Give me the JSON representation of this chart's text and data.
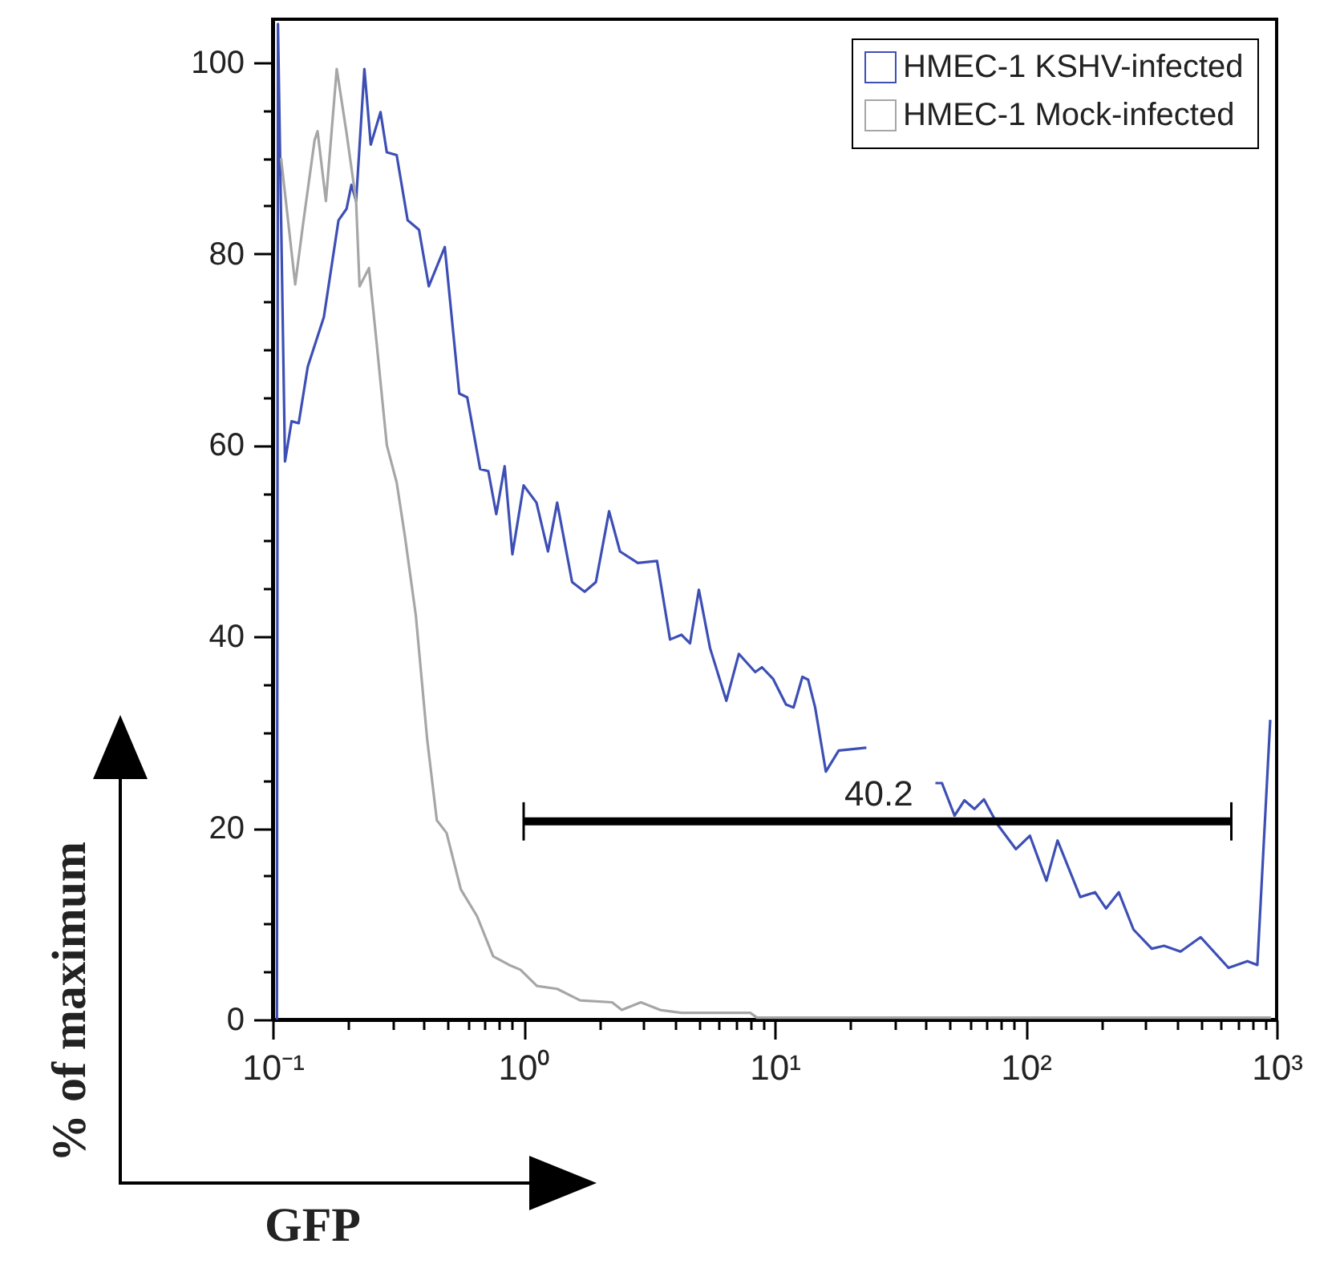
{
  "chart_data": {
    "type": "line",
    "xlabel": "GFP",
    "ylabel": "% of maximum",
    "log": "x",
    "xlim": [
      0.1,
      1000
    ],
    "ylim": [
      0,
      104.5
    ],
    "xticks": [
      {
        "value": 0.1,
        "label": "10⁻¹"
      },
      {
        "value": 0.2,
        "label": null
      },
      {
        "value": 0.3,
        "label": null
      },
      {
        "value": 0.4,
        "label": null
      },
      {
        "value": 0.5,
        "label": null
      },
      {
        "value": 0.6,
        "label": null
      },
      {
        "value": 0.7,
        "label": null
      },
      {
        "value": 0.8,
        "label": null
      },
      {
        "value": 0.9,
        "label": null
      },
      {
        "value": 1,
        "label": "10⁰"
      },
      {
        "value": 2,
        "label": null
      },
      {
        "value": 3,
        "label": null
      },
      {
        "value": 4,
        "label": null
      },
      {
        "value": 5,
        "label": null
      },
      {
        "value": 6,
        "label": null
      },
      {
        "value": 7,
        "label": null
      },
      {
        "value": 8,
        "label": null
      },
      {
        "value": 9,
        "label": null
      },
      {
        "value": 10,
        "label": "10¹"
      },
      {
        "value": 20,
        "label": null
      },
      {
        "value": 30,
        "label": null
      },
      {
        "value": 40,
        "label": null
      },
      {
        "value": 50,
        "label": null
      },
      {
        "value": 60,
        "label": null
      },
      {
        "value": 70,
        "label": null
      },
      {
        "value": 80,
        "label": null
      },
      {
        "value": 90,
        "label": null
      },
      {
        "value": 100,
        "label": "10²"
      },
      {
        "value": 200,
        "label": null
      },
      {
        "value": 300,
        "label": null
      },
      {
        "value": 400,
        "label": null
      },
      {
        "value": 500,
        "label": null
      },
      {
        "value": 600,
        "label": null
      },
      {
        "value": 700,
        "label": null
      },
      {
        "value": 800,
        "label": null
      },
      {
        "value": 900,
        "label": null
      },
      {
        "value": 1000,
        "label": "10³"
      }
    ],
    "yticks": [
      0,
      {
        "value": 5,
        "label": null
      },
      {
        "value": 10,
        "label": null
      },
      {
        "value": 15,
        "label": null
      },
      20,
      {
        "value": 25,
        "label": null
      },
      {
        "value": 30,
        "label": null
      },
      {
        "value": 35,
        "label": null
      },
      40,
      {
        "value": 45,
        "label": null
      },
      {
        "value": 50,
        "label": null
      },
      {
        "value": 55,
        "label": null
      },
      60,
      {
        "value": 65,
        "label": null
      },
      {
        "value": 70,
        "label": null
      },
      {
        "value": 75,
        "label": null
      },
      80,
      {
        "value": 85,
        "label": null
      },
      {
        "value": 90,
        "label": null
      },
      {
        "value": 95,
        "label": null
      },
      100
    ],
    "grid": false,
    "legend": "top right",
    "marker": "none",
    "line_style": "solid",
    "annotations": [
      {
        "text": "40.2",
        "x": 26,
        "y": 21.5
      }
    ],
    "series": [
      {
        "name": "HMEC-1 KSHV-infected",
        "color": "#3d4fb5",
        "x": [
          0.104,
          0.105,
          0.112,
          0.119,
          0.127,
          0.138,
          0.16,
          0.183,
          0.197,
          0.206,
          0.215,
          0.232,
          0.246,
          0.269,
          0.285,
          0.312,
          0.345,
          0.383,
          0.419,
          0.485,
          0.554,
          0.596,
          0.671,
          0.723,
          0.778,
          0.84,
          0.902,
          1.0,
          1.125,
          1.25,
          1.36,
          1.56,
          1.75,
          1.94,
          2.19,
          2.42,
          2.85,
          3.4,
          3.83,
          4.25,
          4.6,
          4.99,
          5.53,
          6.42,
          7.2,
          8.37,
          8.9,
          9.85,
          11.1,
          11.9,
          12.9,
          13.6,
          14.5,
          16.0,
          18.0,
          23.2,
          30,
          43.7,
          46.4,
          52.1,
          57,
          62.5,
          68.2,
          77.6,
          91.5,
          104,
          121,
          134,
          165,
          189,
          209,
          235,
          269,
          318,
          356,
          414,
          498,
          643,
          765,
          838,
          943
        ],
        "values": [
          0,
          104,
          58.3,
          62.5,
          62.3,
          68.2,
          73.4,
          83.5,
          84.7,
          87.2,
          85.5,
          99.3,
          91.4,
          94.8,
          90.6,
          90.3,
          83.5,
          82.5,
          76.6,
          80.7,
          65.4,
          65.0,
          57.5,
          57.3,
          52.8,
          57.8,
          48.6,
          55.8,
          54,
          48.9,
          54,
          45.7,
          44.7,
          45.7,
          53.1,
          48.9,
          47.7,
          47.9,
          39.7,
          40.2,
          39.3,
          44.9,
          38.8,
          33.3,
          38.2,
          36.3,
          36.8,
          35.6,
          32.9,
          32.6,
          35.8,
          35.5,
          32.6,
          25.9,
          28.1,
          28.4,
          null,
          24.7,
          24.7,
          21.3,
          22.9,
          22.0,
          23.0,
          20.3,
          17.8,
          19.2,
          14.5,
          18.7,
          12.8,
          13.3,
          11.6,
          13.3,
          9.4,
          7.4,
          7.7,
          7.1,
          8.6,
          5.4,
          6.1,
          5.7,
          31.3
        ]
      },
      {
        "name": "HMEC-1 Mock-infected",
        "color": "#a6a6a6",
        "x": [
          0.108,
          0.123,
          0.132,
          0.147,
          0.151,
          0.163,
          0.18,
          0.197,
          0.215,
          0.222,
          0.242,
          0.257,
          0.285,
          0.312,
          0.336,
          0.372,
          0.413,
          0.451,
          0.493,
          0.562,
          0.652,
          0.756,
          0.876,
          0.971,
          1.13,
          1.36,
          1.68,
          2.25,
          2.46,
          2.93,
          3.5,
          4.25,
          8.0,
          8.5,
          950
        ],
        "values": [
          90,
          76.8,
          83,
          91.9,
          92.8,
          85.5,
          99.3,
          92.6,
          85.5,
          76.6,
          78.5,
          71.8,
          60,
          56.1,
          50.6,
          42.2,
          29.2,
          20.8,
          19.5,
          13.6,
          10.8,
          6.6,
          5.7,
          5.2,
          3.5,
          3.2,
          2.0,
          1.8,
          1.0,
          1.8,
          1.0,
          0.7,
          0.7,
          0.2,
          0.2
        ]
      },
      {
        "type": "line",
        "color": "#000000",
        "x": [
          1,
          660
        ],
        "values": [
          20.7,
          20.7
        ],
        "errors": [
          2,
          2
        ]
      }
    ]
  }
}
